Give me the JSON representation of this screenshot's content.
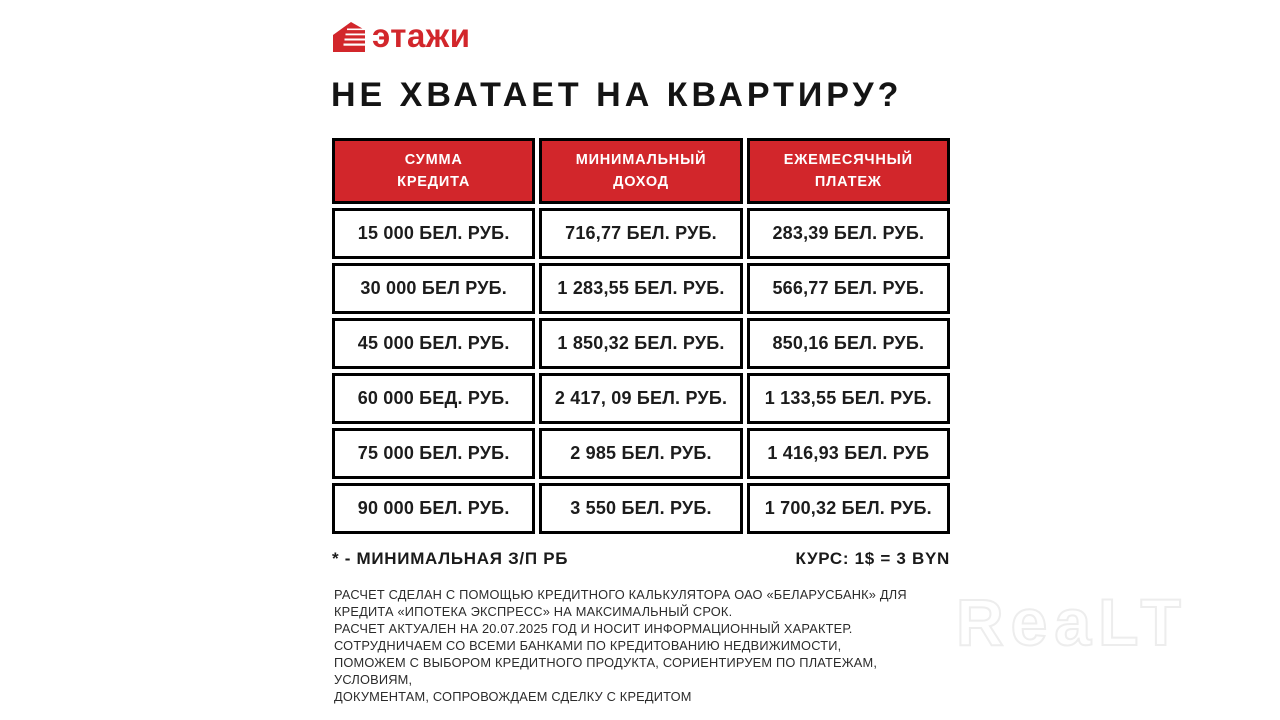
{
  "brand": {
    "name": "этажи"
  },
  "title": "НЕ ХВАТАЕТ НА КВАРТИРУ?",
  "chart_data": {
    "type": "table",
    "title": "НЕ ХВАТАЕТ НА КВАРТИРУ?",
    "columns": [
      "СУММА\nКРЕДИТА",
      "МИНИМАЛЬНЫЙ\nДОХОД",
      "ЕЖЕМЕСЯЧНЫЙ\nПЛАТЕЖ"
    ],
    "rows": [
      [
        "15 000 БЕЛ. РУБ.",
        "716,77 БЕЛ. РУБ.",
        "283,39 БЕЛ. РУБ."
      ],
      [
        "30 000 БЕЛ РУБ.",
        "1 283,55 БЕЛ. РУБ.",
        "566,77 БЕЛ. РУБ."
      ],
      [
        "45 000 БЕЛ. РУБ.",
        "1 850,32 БЕЛ. РУБ.",
        "850,16 БЕЛ. РУБ."
      ],
      [
        "60 000 БЕД. РУБ.",
        "2 417, 09 БЕЛ. РУБ.",
        "1 133,55 БЕЛ. РУБ."
      ],
      [
        "75 000 БЕЛ. РУБ.",
        "2 985 БЕЛ. РУБ.",
        "1 416,93 БЕЛ. РУБ"
      ],
      [
        "90 000 БЕЛ. РУБ.",
        "3 550 БЕЛ. РУБ.",
        "1 700,32 БЕЛ. РУБ."
      ]
    ]
  },
  "footnote": "* - МИНИМАЛЬНАЯ З/П РБ",
  "exchange_rate": "КУРС: 1$ = 3 BYN",
  "disclaimer_lines": [
    "РАСЧЕТ СДЕЛАН С ПОМОЩЬЮ КРЕДИТНОГО КАЛЬКУЛЯТОРА ОАО «БЕЛАРУСБАНК» ДЛЯ",
    "КРЕДИТА «ИПОТЕКА ЭКСПРЕСС» НА МАКСИМАЛЬНЫЙ СРОК.",
    "РАСЧЕТ АКТУАЛЕН НА 20.07.2025 ГОД И НОСИТ ИНФОРМАЦИОННЫЙ ХАРАКТЕР.",
    "СОТРУДНИЧАЕМ СО ВСЕМИ БАНКАМИ ПО КРЕДИТОВАНИЮ НЕДВИЖИМОСТИ,",
    "ПОМОЖЕМ С ВЫБОРОМ КРЕДИТНОГО ПРОДУКТА, СОРИЕНТИРУЕМ ПО ПЛАТЕЖАМ,",
    "УСЛОВИЯМ,",
    "ДОКУМЕНТАМ, СОПРОВОЖДАЕМ СДЕЛКУ С КРЕДИТОМ"
  ],
  "watermark": "ReaLT",
  "colors": {
    "accent_red": "#d2262b",
    "border_black": "#000000",
    "text_dark": "#1c1c1c"
  }
}
